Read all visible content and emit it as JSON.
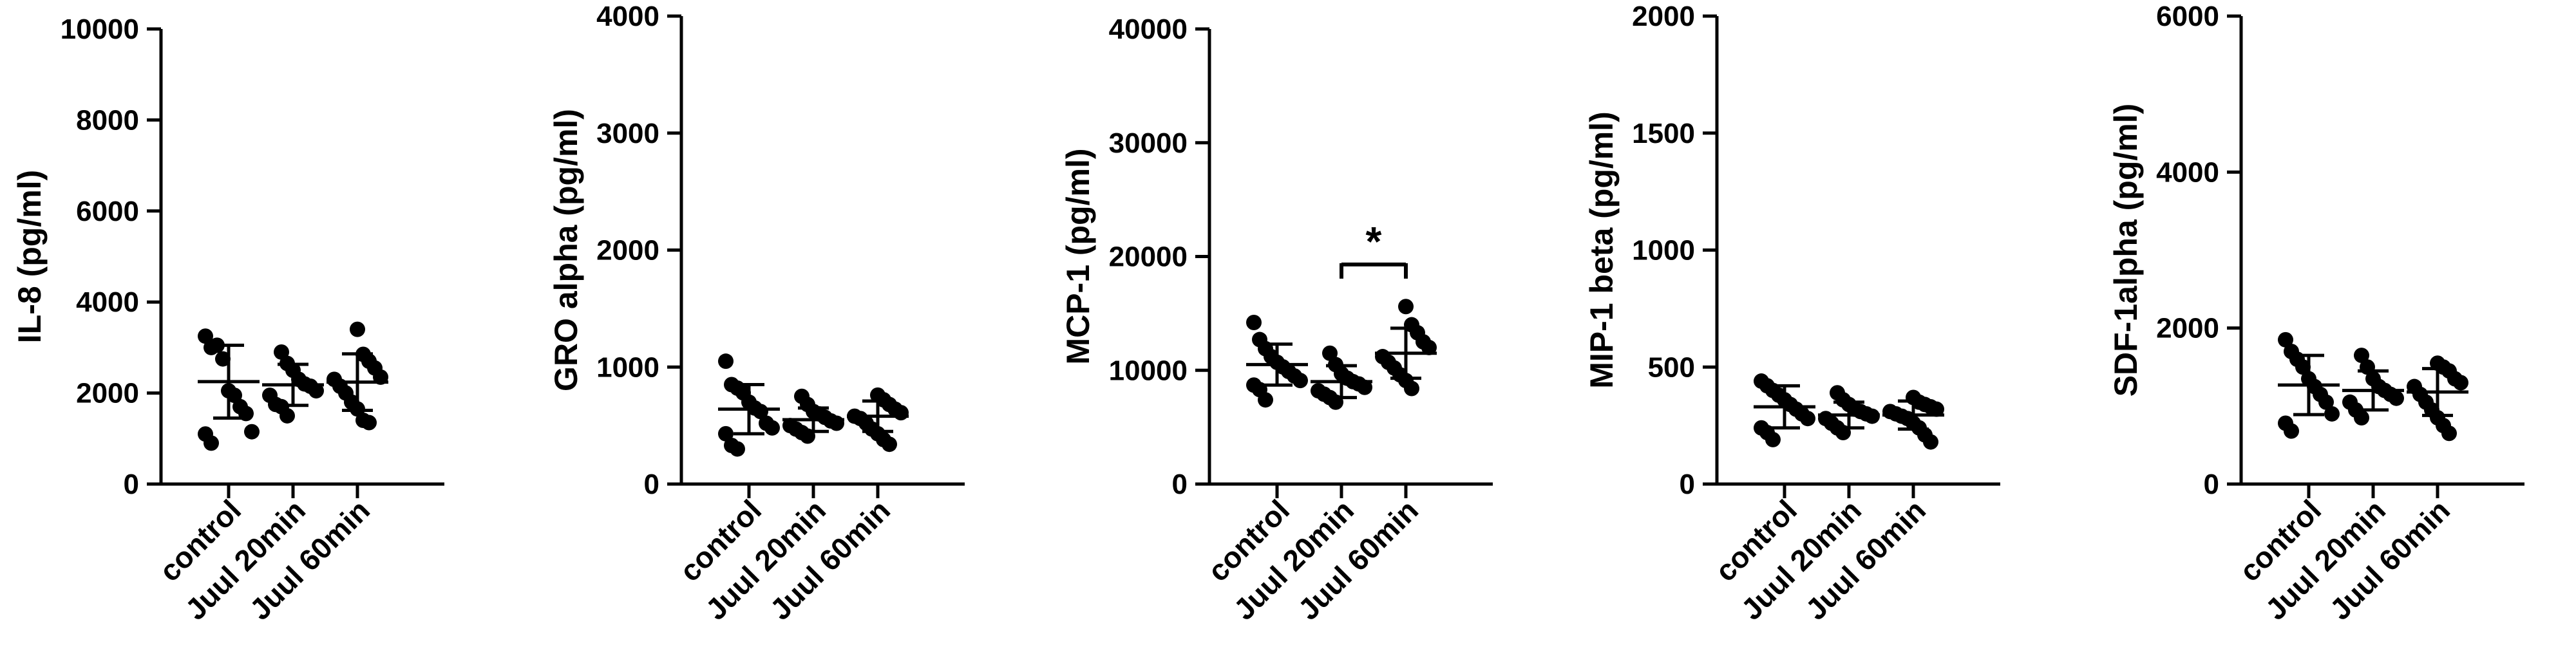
{
  "chart_data": [
    {
      "type": "scatter",
      "ylabel": "IL-8 (pg/ml)",
      "ylim": [
        0,
        10000
      ],
      "yticks": [
        0,
        2000,
        4000,
        6000,
        8000,
        10000
      ],
      "categories": [
        "control",
        "Juul 20min",
        "Juul 60min"
      ],
      "points": [
        [
          3250,
          3000,
          3050,
          2750,
          2050,
          1950,
          1700,
          1550,
          1150,
          1100,
          900
        ],
        [
          2900,
          2650,
          2500,
          2300,
          2200,
          2150,
          2050,
          1950,
          1750,
          1700,
          1500
        ],
        [
          3400,
          2850,
          2700,
          2550,
          2350,
          2300,
          2150,
          2000,
          1800,
          1650,
          1400,
          1350
        ]
      ],
      "mean": [
        2250,
        2180,
        2240
      ],
      "sd": [
        800,
        450,
        620
      ],
      "grid": false
    },
    {
      "type": "scatter",
      "ylabel": "GRO alpha (pg/ml)",
      "ylim": [
        0,
        4000
      ],
      "yticks": [
        0,
        1000,
        2000,
        3000,
        4000
      ],
      "categories": [
        "control",
        "Juul 20min",
        "Juul 60min"
      ],
      "points": [
        [
          1050,
          850,
          820,
          780,
          700,
          650,
          620,
          520,
          480,
          430,
          330,
          300
        ],
        [
          750,
          680,
          620,
          600,
          570,
          540,
          520,
          500,
          470,
          440,
          410
        ],
        [
          760,
          720,
          680,
          640,
          610,
          580,
          560,
          520,
          470,
          430,
          380,
          340
        ]
      ],
      "mean": [
        640,
        550,
        580
      ],
      "sd": [
        210,
        100,
        130
      ],
      "grid": false
    },
    {
      "type": "scatter",
      "ylabel": "MCP-1 (pg/ml)",
      "ylim": [
        0,
        40000
      ],
      "yticks": [
        0,
        10000,
        20000,
        30000,
        40000
      ],
      "categories": [
        "control",
        "Juul 20min",
        "Juul 60min"
      ],
      "points": [
        [
          14200,
          12700,
          11900,
          11200,
          10700,
          10300,
          9900,
          9500,
          9100,
          8700,
          8300,
          7400
        ],
        [
          11500,
          10500,
          9700,
          9300,
          9000,
          8800,
          8500,
          8200,
          7900,
          7600,
          7200
        ],
        [
          15600,
          14000,
          13300,
          12500,
          12000,
          11200,
          10700,
          10200,
          9600,
          9100,
          8400
        ]
      ],
      "mean": [
        10500,
        9000,
        11500
      ],
      "sd": [
        1800,
        1400,
        2200
      ],
      "significance": {
        "from": 1,
        "to": 2,
        "y": 19300,
        "label": "*"
      },
      "grid": false
    },
    {
      "type": "scatter",
      "ylabel": "MIP-1 beta (pg/ml)",
      "ylim": [
        0,
        2000
      ],
      "yticks": [
        0,
        500,
        1000,
        1500,
        2000
      ],
      "categories": [
        "control",
        "Juul 20min",
        "Juul 60min"
      ],
      "points": [
        [
          440,
          420,
          400,
          380,
          360,
          340,
          320,
          300,
          280,
          240,
          220,
          190
        ],
        [
          390,
          360,
          340,
          320,
          310,
          300,
          290,
          280,
          260,
          240,
          220
        ],
        [
          370,
          350,
          340,
          330,
          320,
          310,
          300,
          290,
          280,
          260,
          240,
          210,
          180
        ]
      ],
      "mean": [
        330,
        295,
        295
      ],
      "sd": [
        90,
        55,
        60
      ],
      "grid": false
    },
    {
      "type": "scatter",
      "ylabel": "SDF-1alpha (pg/ml)",
      "ylim": [
        0,
        6000
      ],
      "yticks": [
        0,
        2000,
        4000,
        6000
      ],
      "categories": [
        "control",
        "Juul 20min",
        "Juul 60min"
      ],
      "points": [
        [
          1850,
          1700,
          1600,
          1500,
          1350,
          1250,
          1150,
          1050,
          900,
          780,
          680
        ],
        [
          1650,
          1500,
          1350,
          1250,
          1200,
          1150,
          1100,
          1050,
          950,
          850
        ],
        [
          1550,
          1500,
          1450,
          1350,
          1300,
          1250,
          1150,
          1050,
          950,
          850,
          750,
          650
        ]
      ],
      "mean": [
        1270,
        1200,
        1180
      ],
      "sd": [
        380,
        250,
        300
      ],
      "grid": false
    }
  ]
}
